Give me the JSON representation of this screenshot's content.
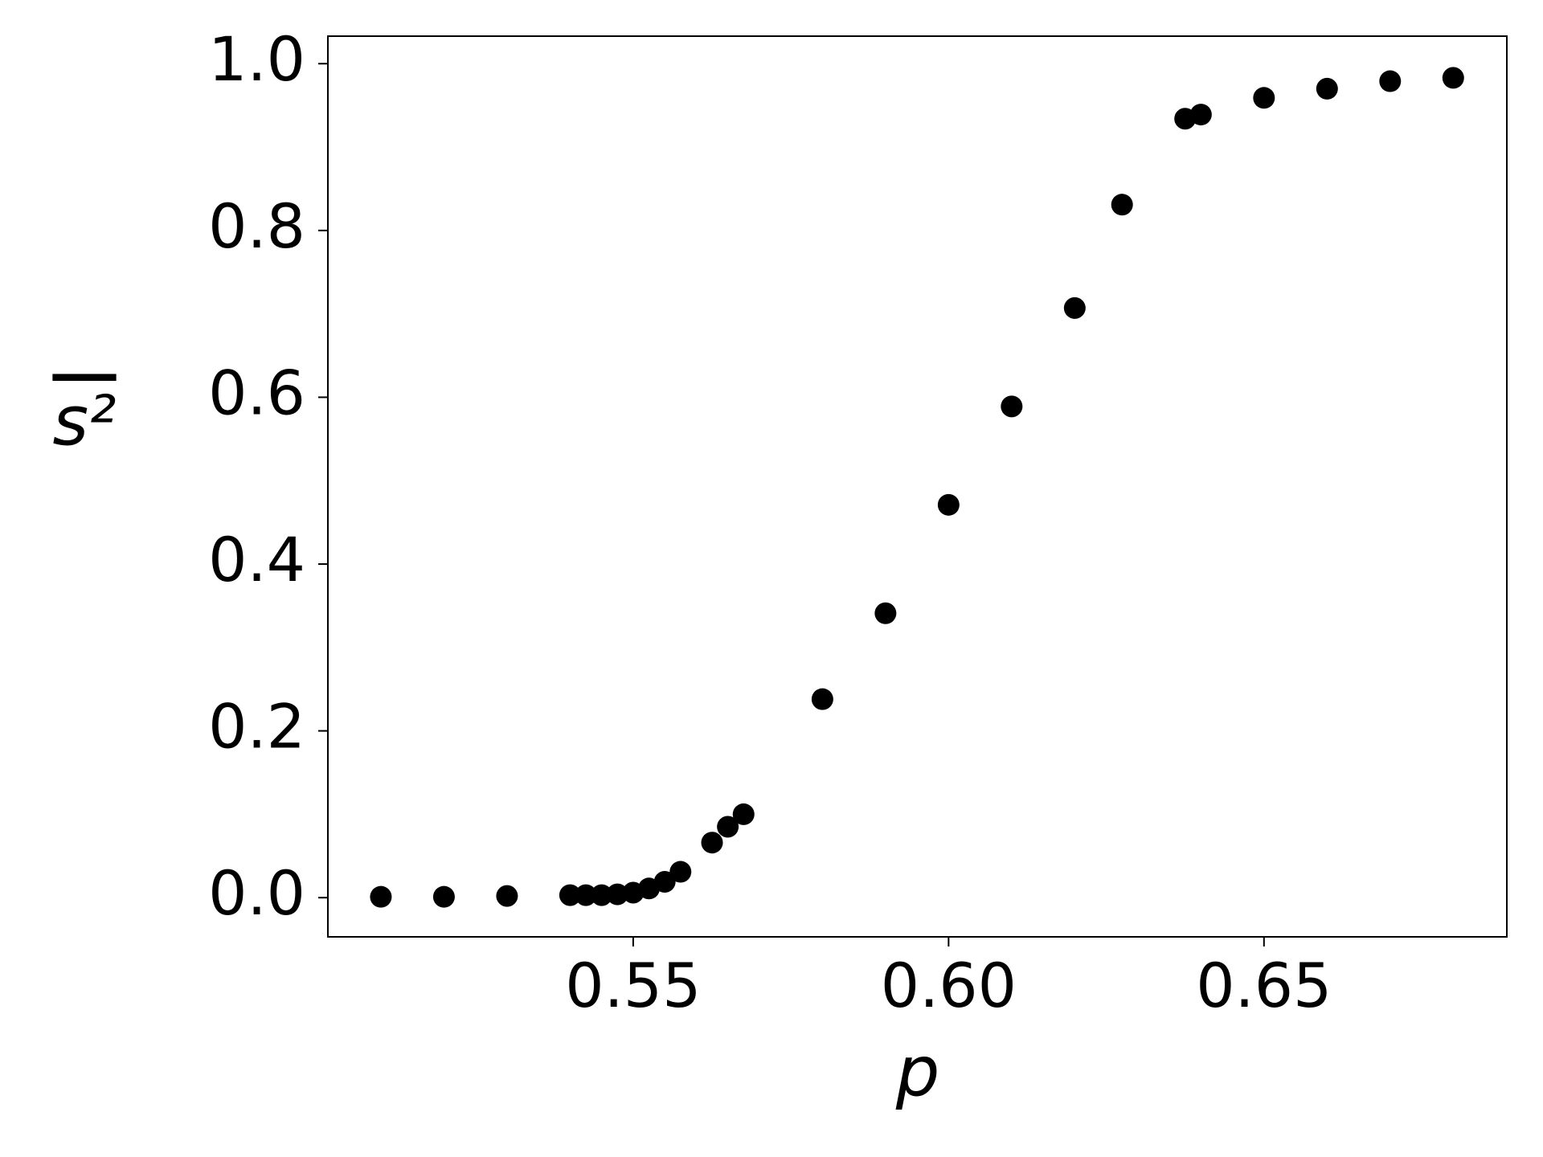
{
  "chart_data": {
    "type": "scatter",
    "xlabel": "p",
    "ylabel": "s²",
    "color": "#000000",
    "x": [
      0.51,
      0.52,
      0.53,
      0.54,
      0.5425,
      0.545,
      0.5475,
      0.55,
      0.5525,
      0.555,
      0.5575,
      0.5625,
      0.565,
      0.5675,
      0.58,
      0.59,
      0.6,
      0.61,
      0.62,
      0.6275,
      0.6375,
      0.64,
      0.65,
      0.66,
      0.67,
      0.68
    ],
    "values": [
      0.001,
      0.001,
      0.002,
      0.003,
      0.003,
      0.003,
      0.004,
      0.006,
      0.011,
      0.019,
      0.031,
      0.066,
      0.085,
      0.1,
      0.238,
      0.341,
      0.471,
      0.589,
      0.707,
      0.831,
      0.934,
      0.939,
      0.959,
      0.97,
      0.979,
      0.983
    ],
    "xlim": [
      0.5016,
      0.6885
    ],
    "ylim": [
      -0.047,
      1.033
    ],
    "xticks": [
      0.55,
      {
        "value": 0.6,
        "label": "0.60"
      },
      0.65
    ],
    "yticks": [
      {
        "value": 0,
        "label": "0.0"
      },
      0.2,
      0.4,
      0.6,
      0.8,
      {
        "value": 1,
        "label": "1.0"
      }
    ]
  }
}
